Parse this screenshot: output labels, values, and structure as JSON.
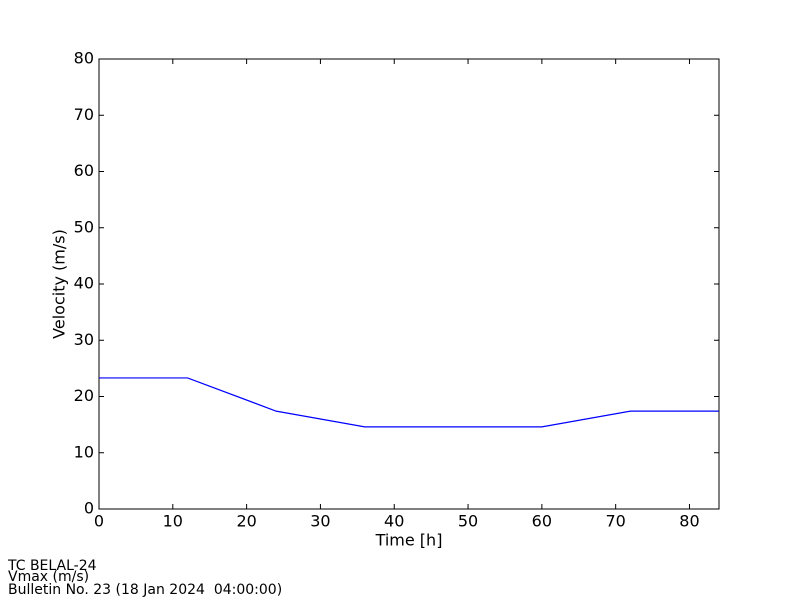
{
  "chart_data": {
    "type": "line",
    "xlabel": "Time [h]",
    "ylabel": "Velocity (m/s)",
    "x": [
      0,
      12,
      24,
      36,
      48,
      60,
      72,
      84
    ],
    "series": [
      {
        "color": "#0000ff",
        "values": [
          23.3,
          23.3,
          17.4,
          14.6,
          14.6,
          14.6,
          17.4,
          17.4
        ]
      }
    ],
    "xlim": [
      0,
      84
    ],
    "xticks": [
      0,
      10,
      20,
      30,
      40,
      50,
      60,
      70,
      80
    ],
    "ylim": [
      0,
      80
    ],
    "yticks": [
      0,
      10,
      20,
      30,
      40,
      50,
      60,
      70,
      80
    ],
    "grid": false
  },
  "footer": {
    "lines": [
      "TC BELAL-24",
      "Vmax (m/s)",
      "Bulletin No. 23 (18 Jan 2024  04:00:00)"
    ]
  }
}
